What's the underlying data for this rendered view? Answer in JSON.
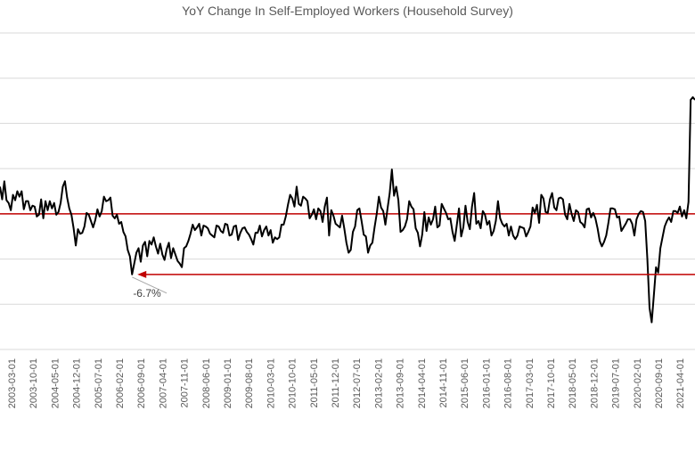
{
  "chart_data": {
    "type": "line",
    "title": "YoY Change In Self-Employed Workers (Household Survey)",
    "xlabel": "",
    "ylabel": "",
    "grid": true,
    "x_tick_labels": [
      "2003-03-01",
      "2003-10-01",
      "2004-05-01",
      "2004-12-01",
      "2005-07-01",
      "2006-02-01",
      "2006-09-01",
      "2007-04-01",
      "2007-11-01",
      "2008-06-01",
      "2009-01-01",
      "2009-08-01",
      "2010-03-01",
      "2010-10-01",
      "2011-05-01",
      "2011-12-01",
      "2012-07-01",
      "2013-02-01",
      "2013-09-01",
      "2014-04-01",
      "2014-11-01",
      "2015-06-01",
      "2016-01-01",
      "2016-08-01",
      "2017-03-01",
      "2017-10-01",
      "2018-05-01",
      "2018-12-01",
      "2019-07-01",
      "2020-02-01",
      "2020-09-01",
      "2021-04-01"
    ],
    "series": [
      {
        "values": [
          3.0,
          1.6,
          3.6,
          1.5,
          1.2,
          0.4,
          2.1,
          1.5,
          2.5,
          1.9,
          2.5,
          0.5,
          1.4,
          1.4,
          0.4,
          0.9,
          0.8,
          -0.3,
          -0.1,
          1.6,
          -0.5,
          1.4,
          0.4,
          1.4,
          0.6,
          1.2,
          -0.1,
          0.2,
          1.2,
          3.0,
          3.6,
          1.8,
          0.6,
          -0.1,
          -1.6,
          -3.5,
          -1.7,
          -2.2,
          -2.1,
          -1.4,
          0.1,
          -0.1,
          -0.8,
          -1.5,
          -0.7,
          0.5,
          -0.3,
          0.3,
          1.9,
          1.4,
          1.5,
          1.8,
          -0.2,
          -0.5,
          -0.1,
          -1.1,
          -0.9,
          -2.0,
          -2.5,
          -4.0,
          -4.7,
          -6.7,
          -5.5,
          -4.3,
          -3.8,
          -5.3,
          -3.5,
          -3.1,
          -4.7,
          -3.0,
          -3.4,
          -2.6,
          -3.6,
          -4.4,
          -3.3,
          -4.5,
          -5.1,
          -3.9,
          -3.2,
          -4.9,
          -3.8,
          -4.5,
          -5.2,
          -5.5,
          -5.9,
          -3.8,
          -3.6,
          -3.0,
          -2.2,
          -1.2,
          -1.8,
          -1.5,
          -1.1,
          -2.4,
          -1.3,
          -1.4,
          -1.6,
          -2.2,
          -2.4,
          -2.6,
          -1.3,
          -1.4,
          -1.9,
          -2.1,
          -1.1,
          -1.2,
          -2.4,
          -2.3,
          -1.4,
          -1.3,
          -2.9,
          -2.1,
          -1.6,
          -1.5,
          -2.0,
          -2.3,
          -2.8,
          -3.4,
          -2.1,
          -2.1,
          -1.3,
          -2.5,
          -1.8,
          -1.4,
          -2.4,
          -1.8,
          -3.2,
          -2.6,
          -2.8,
          -2.6,
          -1.2,
          -1.2,
          -0.3,
          1.0,
          2.1,
          1.7,
          0.8,
          3.0,
          1.1,
          0.9,
          1.9,
          1.7,
          1.4,
          -0.5,
          -0.1,
          0.5,
          -0.6,
          0.6,
          0.3,
          -0.9,
          0.8,
          1.8,
          -2.4,
          0.4,
          -0.2,
          -1.1,
          -1.3,
          -1.5,
          -0.2,
          -1.6,
          -3.2,
          -4.3,
          -4.0,
          -2.0,
          -1.4,
          0.4,
          0.6,
          -0.8,
          -2.3,
          -2.5,
          -4.3,
          -3.5,
          -3.2,
          -1.5,
          0.0,
          1.9,
          0.7,
          0.3,
          -1.2,
          0.6,
          2.3,
          4.9,
          2.0,
          3.0,
          1.5,
          -2.0,
          -1.8,
          -1.4,
          -0.6,
          1.4,
          0.8,
          0.5,
          -1.6,
          -2.1,
          -3.6,
          -2.3,
          0.2,
          -1.9,
          -0.4,
          -1.2,
          -0.6,
          0.8,
          -1.5,
          -1.3,
          1.1,
          0.6,
          0.1,
          -0.6,
          -0.5,
          -2.0,
          -3.0,
          -1.2,
          0.6,
          -2.5,
          -1.5,
          0.9,
          -0.9,
          -1.7,
          0.8,
          2.3,
          -1.1,
          -0.8,
          -1.6,
          0.3,
          -0.1,
          -1.2,
          -0.8,
          -2.4,
          -1.9,
          -0.8,
          1.4,
          -0.5,
          -1.1,
          -1.4,
          -1.1,
          -2.4,
          -1.4,
          -2.4,
          -2.8,
          -2.4,
          -1.4,
          -1.5,
          -1.6,
          -2.5,
          -2.0,
          -1.4,
          0.7,
          0.1,
          1.0,
          -1.0,
          2.1,
          1.7,
          0.2,
          0.1,
          1.6,
          2.3,
          0.7,
          0.4,
          1.7,
          1.8,
          1.6,
          -0.1,
          -0.6,
          1.1,
          0.0,
          -0.8,
          0.4,
          0.2,
          -0.9,
          -1.1,
          -1.5,
          0.5,
          0.6,
          -0.4,
          0.1,
          -0.5,
          -1.6,
          -3.0,
          -3.6,
          -3.1,
          -2.4,
          -1.0,
          0.6,
          0.6,
          0.5,
          -0.4,
          -0.3,
          -1.9,
          -1.5,
          -1.1,
          -0.6,
          -0.6,
          -1.1,
          -2.4,
          -0.6,
          0.0,
          0.3,
          0.2,
          -0.8,
          -5.0,
          -10.4,
          -12.0,
          -9.0,
          -5.9,
          -6.5,
          -3.8,
          -2.6,
          -1.4,
          -0.8,
          -0.4,
          -0.9,
          0.3,
          0.3,
          0.1,
          0.8,
          -0.3,
          0.4,
          -0.5,
          1.3,
          12.6,
          12.9,
          12.6
        ],
        "color": "#000000"
      }
    ],
    "ylim": [
      -15,
      20
    ],
    "reference_lines": [
      {
        "value": 0,
        "color": "#c00000"
      },
      {
        "value": -6.7,
        "color": "#c00000",
        "arrow": "left"
      }
    ],
    "annotations": [
      {
        "text": "-6.7%"
      }
    ]
  }
}
